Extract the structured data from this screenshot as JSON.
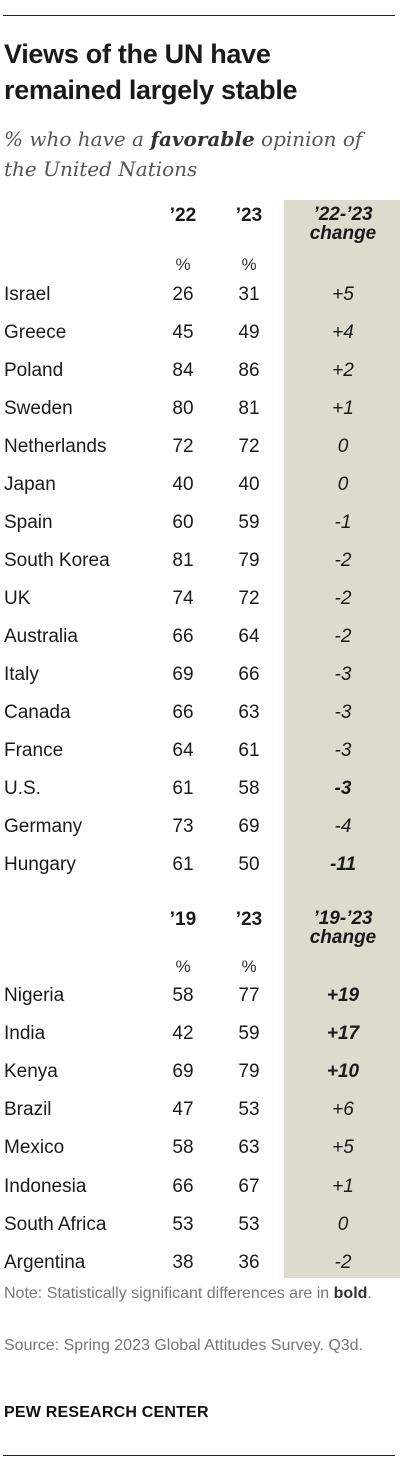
{
  "title": "Views of the UN have remained largely stable",
  "subtitle": {
    "prefix": "% who have a ",
    "emphasis": "favorable",
    "suffix": " opinion of the United Nations"
  },
  "colors": {
    "change_column_bg": "#dedacd",
    "text": "#1a1a1a",
    "note": "#777777"
  },
  "chart_data": [
    {
      "type": "table",
      "columns": [
        "’22",
        "’23",
        "’22-’23 change"
      ],
      "unit_row": [
        "%",
        "%"
      ],
      "rows": [
        {
          "country": "Israel",
          "v1": 26,
          "v2": 31,
          "change": "+5",
          "significant": false
        },
        {
          "country": "Greece",
          "v1": 45,
          "v2": 49,
          "change": "+4",
          "significant": false
        },
        {
          "country": "Poland",
          "v1": 84,
          "v2": 86,
          "change": "+2",
          "significant": false
        },
        {
          "country": "Sweden",
          "v1": 80,
          "v2": 81,
          "change": "+1",
          "significant": false
        },
        {
          "country": "Netherlands",
          "v1": 72,
          "v2": 72,
          "change": "0",
          "significant": false
        },
        {
          "country": "Japan",
          "v1": 40,
          "v2": 40,
          "change": "0",
          "significant": false
        },
        {
          "country": "Spain",
          "v1": 60,
          "v2": 59,
          "change": "-1",
          "significant": false
        },
        {
          "country": "South Korea",
          "v1": 81,
          "v2": 79,
          "change": "-2",
          "significant": false
        },
        {
          "country": "UK",
          "v1": 74,
          "v2": 72,
          "change": "-2",
          "significant": false
        },
        {
          "country": "Australia",
          "v1": 66,
          "v2": 64,
          "change": "-2",
          "significant": false
        },
        {
          "country": "Italy",
          "v1": 69,
          "v2": 66,
          "change": "-3",
          "significant": false
        },
        {
          "country": "Canada",
          "v1": 66,
          "v2": 63,
          "change": "-3",
          "significant": false
        },
        {
          "country": "France",
          "v1": 64,
          "v2": 61,
          "change": "-3",
          "significant": false
        },
        {
          "country": "U.S.",
          "v1": 61,
          "v2": 58,
          "change": "-3",
          "significant": true
        },
        {
          "country": "Germany",
          "v1": 73,
          "v2": 69,
          "change": "-4",
          "significant": false
        },
        {
          "country": "Hungary",
          "v1": 61,
          "v2": 50,
          "change": "-11",
          "significant": true
        }
      ]
    },
    {
      "type": "table",
      "columns": [
        "’19",
        "’23",
        "’19-’23 change"
      ],
      "unit_row": [
        "%",
        "%"
      ],
      "rows": [
        {
          "country": "Nigeria",
          "v1": 58,
          "v2": 77,
          "change": "+19",
          "significant": true
        },
        {
          "country": "India",
          "v1": 42,
          "v2": 59,
          "change": "+17",
          "significant": true
        },
        {
          "country": "Kenya",
          "v1": 69,
          "v2": 79,
          "change": "+10",
          "significant": true
        },
        {
          "country": "Brazil",
          "v1": 47,
          "v2": 53,
          "change": "+6",
          "significant": false
        },
        {
          "country": "Mexico",
          "v1": 58,
          "v2": 63,
          "change": "+5",
          "significant": false
        },
        {
          "country": "Indonesia",
          "v1": 66,
          "v2": 67,
          "change": "+1",
          "significant": false
        },
        {
          "country": "South Africa",
          "v1": 53,
          "v2": 53,
          "change": "0",
          "significant": false
        },
        {
          "country": "Argentina",
          "v1": 38,
          "v2": 36,
          "change": "-2",
          "significant": false
        }
      ]
    }
  ],
  "note": {
    "text": "Note: Statistically significant differences are in ",
    "bold": "bold",
    "end": "."
  },
  "source": "Source: Spring 2023 Global Attitudes Survey. Q3d.",
  "brand": "PEW RESEARCH CENTER"
}
